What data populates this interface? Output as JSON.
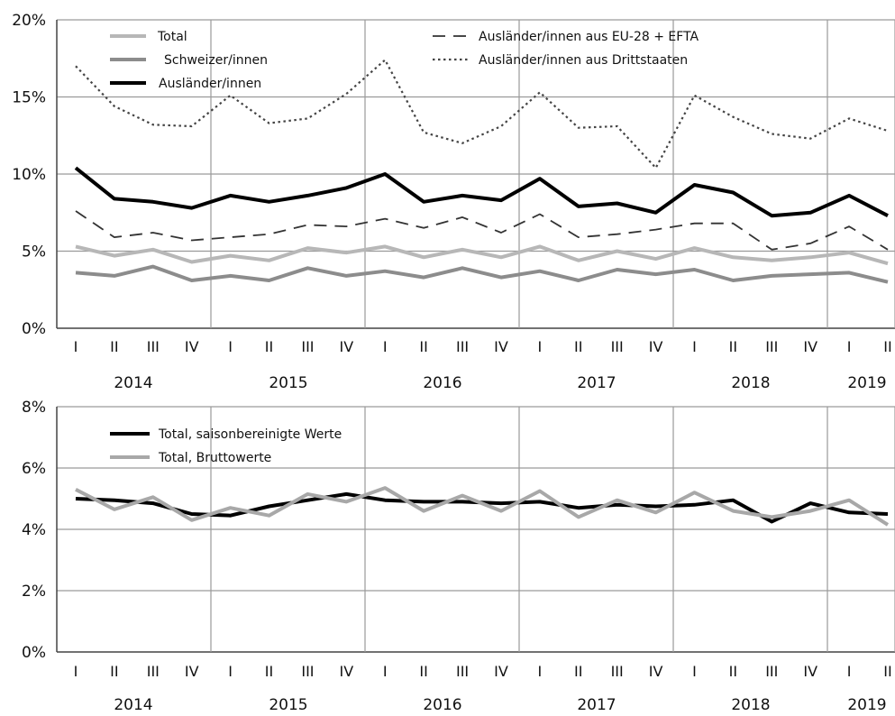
{
  "chart_data": [
    {
      "type": "line",
      "quarters": [
        "I",
        "II",
        "III",
        "IV",
        "I",
        "II",
        "III",
        "IV",
        "I",
        "II",
        "III",
        "IV",
        "I",
        "II",
        "III",
        "IV",
        "I",
        "II",
        "III",
        "IV",
        "I",
        "II"
      ],
      "years": [
        "2014",
        "2015",
        "2016",
        "2017",
        "2018",
        "2019"
      ],
      "ylim": [
        0,
        20
      ],
      "yticks": [
        "0%",
        "5%",
        "10%",
        "15%",
        "20%"
      ],
      "grid": true,
      "series": [
        {
          "name": "Total",
          "color": "#b7b7b7",
          "style": "solid",
          "values": [
            5.3,
            4.7,
            5.1,
            4.3,
            4.7,
            4.4,
            5.2,
            4.9,
            5.3,
            4.6,
            5.1,
            4.6,
            5.3,
            4.4,
            5.0,
            4.5,
            5.2,
            4.6,
            4.4,
            4.6,
            4.9,
            4.2
          ]
        },
        {
          "name": "Schweizer/innen",
          "color": "#8c8c8c",
          "style": "solid",
          "values": [
            3.6,
            3.4,
            4.0,
            3.1,
            3.4,
            3.1,
            3.9,
            3.4,
            3.7,
            3.3,
            3.9,
            3.3,
            3.7,
            3.1,
            3.8,
            3.5,
            3.8,
            3.1,
            3.4,
            3.5,
            3.6,
            3.0
          ]
        },
        {
          "name": "Ausländer/innen",
          "color": "#000000",
          "style": "solid",
          "values": [
            10.4,
            8.4,
            8.2,
            7.8,
            8.6,
            8.2,
            8.6,
            9.1,
            10.0,
            8.2,
            8.6,
            8.3,
            9.7,
            7.9,
            8.1,
            7.5,
            9.3,
            8.8,
            7.3,
            7.5,
            8.6,
            7.3
          ]
        },
        {
          "name": "Ausländer/innen aus EU-28 + EFTA",
          "color": "#333333",
          "style": "dashed",
          "values": [
            7.6,
            5.9,
            6.2,
            5.7,
            5.9,
            6.1,
            6.7,
            6.6,
            7.1,
            6.5,
            7.2,
            6.2,
            7.4,
            5.9,
            6.1,
            6.4,
            6.8,
            6.8,
            5.1,
            5.5,
            6.6,
            5.1
          ]
        },
        {
          "name": "Ausländer/innen aus Drittstaaten",
          "color": "#444444",
          "style": "dotted",
          "values": [
            17.0,
            14.4,
            13.2,
            13.1,
            15.1,
            13.3,
            13.6,
            15.2,
            17.4,
            12.7,
            12.0,
            13.1,
            15.3,
            13.0,
            13.1,
            10.4,
            15.1,
            13.7,
            12.6,
            12.3,
            13.6,
            12.8
          ]
        }
      ]
    },
    {
      "type": "line",
      "quarters": [
        "I",
        "II",
        "III",
        "IV",
        "I",
        "II",
        "III",
        "IV",
        "I",
        "II",
        "III",
        "IV",
        "I",
        "II",
        "III",
        "IV",
        "I",
        "II",
        "III",
        "IV",
        "I",
        "II"
      ],
      "years": [
        "2014",
        "2015",
        "2016",
        "2017",
        "2018",
        "2019"
      ],
      "ylim": [
        0,
        8
      ],
      "yticks": [
        "0%",
        "2%",
        "4%",
        "6%",
        "8%"
      ],
      "grid": true,
      "series": [
        {
          "name": "Total, saisonbereinigte Werte",
          "color": "#000000",
          "style": "solid",
          "values": [
            5.0,
            4.95,
            4.85,
            4.5,
            4.45,
            4.75,
            4.95,
            5.15,
            4.95,
            4.9,
            4.9,
            4.85,
            4.9,
            4.7,
            4.8,
            4.75,
            4.8,
            4.95,
            4.25,
            4.85,
            4.55,
            4.5
          ]
        },
        {
          "name": "Total, Bruttowerte",
          "color": "#a8a8a8",
          "style": "solid",
          "values": [
            5.3,
            4.65,
            5.05,
            4.3,
            4.7,
            4.45,
            5.15,
            4.9,
            5.35,
            4.6,
            5.1,
            4.6,
            5.25,
            4.4,
            4.95,
            4.55,
            5.2,
            4.6,
            4.4,
            4.6,
            4.95,
            4.15
          ]
        }
      ]
    }
  ]
}
